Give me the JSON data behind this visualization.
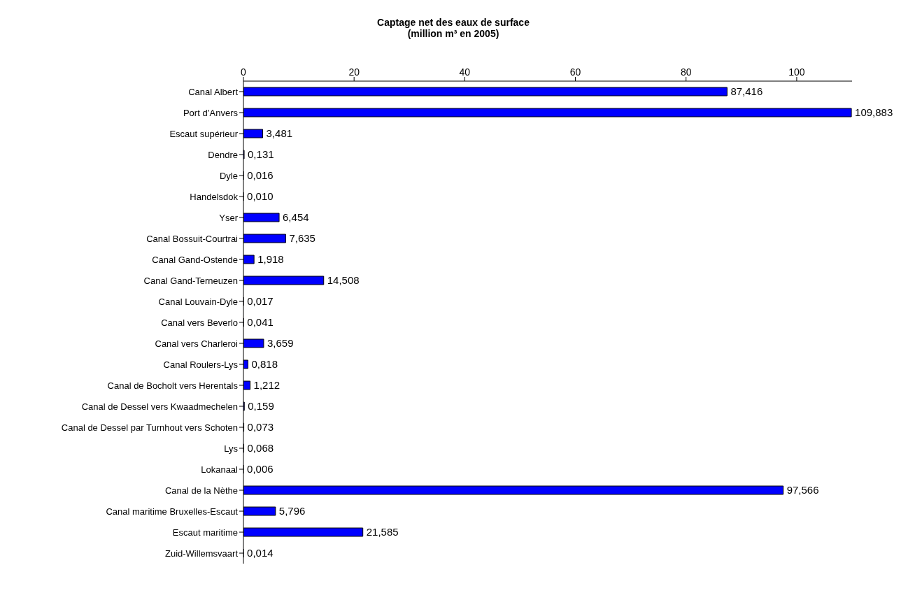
{
  "chart_data": {
    "type": "bar",
    "orientation": "horizontal",
    "title": "Captage net des eaux de surface",
    "subtitle": "(million m³ en 2005)",
    "categories": [
      "Canal Albert",
      "Port d’Anvers",
      "Escaut supérieur",
      "Dendre",
      "Dyle",
      "Handelsdok",
      "Yser",
      "Canal Bossuit-Courtrai",
      "Canal Gand-Ostende",
      "Canal Gand-Terneuzen",
      "Canal Louvain-Dyle",
      "Canal vers Beverlo",
      "Canal vers Charleroi",
      "Canal Roulers-Lys",
      "Canal de Bocholt vers Herentals",
      "Canal de Dessel vers Kwaadmechelen",
      "Canal de Dessel par Turnhout vers Schoten",
      "Lys",
      "Lokanaal",
      "Canal de la Nèthe",
      "Canal maritime Bruxelles-Escaut",
      "Escaut maritime",
      "Zuid-Willemsvaart"
    ],
    "values": [
      87.416,
      109.883,
      3.481,
      0.131,
      0.016,
      0.01,
      6.454,
      7.635,
      1.918,
      14.508,
      0.017,
      0.041,
      3.659,
      0.818,
      1.212,
      0.159,
      0.073,
      0.068,
      0.006,
      97.566,
      5.796,
      21.585,
      0.014
    ],
    "value_labels": [
      "87,416",
      "109,883",
      "3,481",
      "0,131",
      "0,016",
      "0,010",
      "6,454",
      "7,635",
      "1,918",
      "14,508",
      "0,017",
      "0,041",
      "3,659",
      "0,818",
      "1,212",
      "0,159",
      "0,073",
      "0,068",
      "0,006",
      "97,566",
      "5,796",
      "21,585",
      "0,014"
    ],
    "color": "#0000ff",
    "xlim": [
      0,
      110
    ],
    "xticks": [
      0,
      20,
      40,
      60,
      80,
      100
    ],
    "grid": false
  }
}
